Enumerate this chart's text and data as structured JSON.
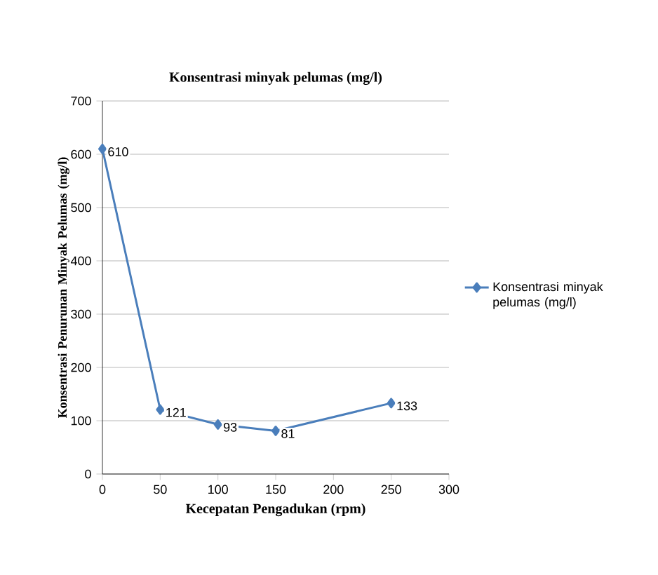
{
  "chart_data": {
    "type": "line",
    "title": "Konsentrasi minyak pelumas (mg/l)",
    "xlabel": "Kecepatan Pengadukan (rpm)",
    "ylabel": "Konsentrasi Penurunan  Minyak Pelumas (mg/l)",
    "x": [
      0,
      50,
      100,
      150,
      250
    ],
    "series": [
      {
        "name": "Konsentrasi minyak pelumas (mg/l)",
        "color": "#4a7ebb",
        "values": [
          610,
          121,
          93,
          81,
          133
        ]
      }
    ],
    "xlim": [
      0,
      300
    ],
    "xticks": [
      0,
      50,
      100,
      150,
      200,
      250,
      300
    ],
    "ylim": [
      0,
      700
    ],
    "yticks": [
      0,
      100,
      200,
      300,
      400,
      500,
      600,
      700
    ],
    "grid": "y",
    "legend": "right",
    "marker": "diamond",
    "line_style": "solid",
    "data_labels": true
  }
}
